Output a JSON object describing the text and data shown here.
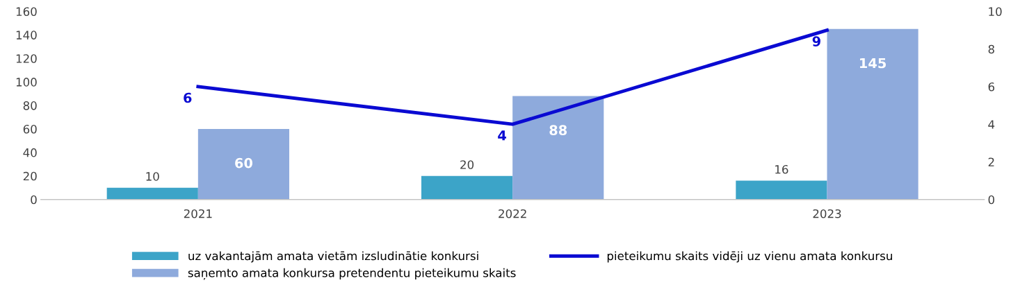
{
  "chart_data": {
    "type": "bar",
    "categories": [
      "2021",
      "2022",
      "2023"
    ],
    "series": [
      {
        "name": "uz vakantajām amata vietām izsludinātie konkursi",
        "color": "#3ca4c8",
        "values": [
          10,
          20,
          16
        ]
      },
      {
        "name": "saņemto amata konkursa pretendentu pieteikumu skaits",
        "color": "#8eaadc",
        "values": [
          60,
          88,
          145
        ]
      },
      {
        "name": "pieteikumu skaits vidēji uz vienu amata konkursu",
        "type": "line",
        "axis": "y2",
        "color": "#0a0ad2",
        "values": [
          6,
          4,
          9
        ]
      }
    ],
    "ylim": [
      0,
      160
    ],
    "yticks": [
      0,
      20,
      40,
      60,
      80,
      100,
      120,
      140,
      160
    ],
    "y2lim": [
      0,
      10
    ],
    "y2ticks": [
      0,
      2,
      4,
      6,
      8,
      10
    ],
    "data_labels": true,
    "grid": false,
    "legend": "bottom",
    "line_style": "solid"
  }
}
